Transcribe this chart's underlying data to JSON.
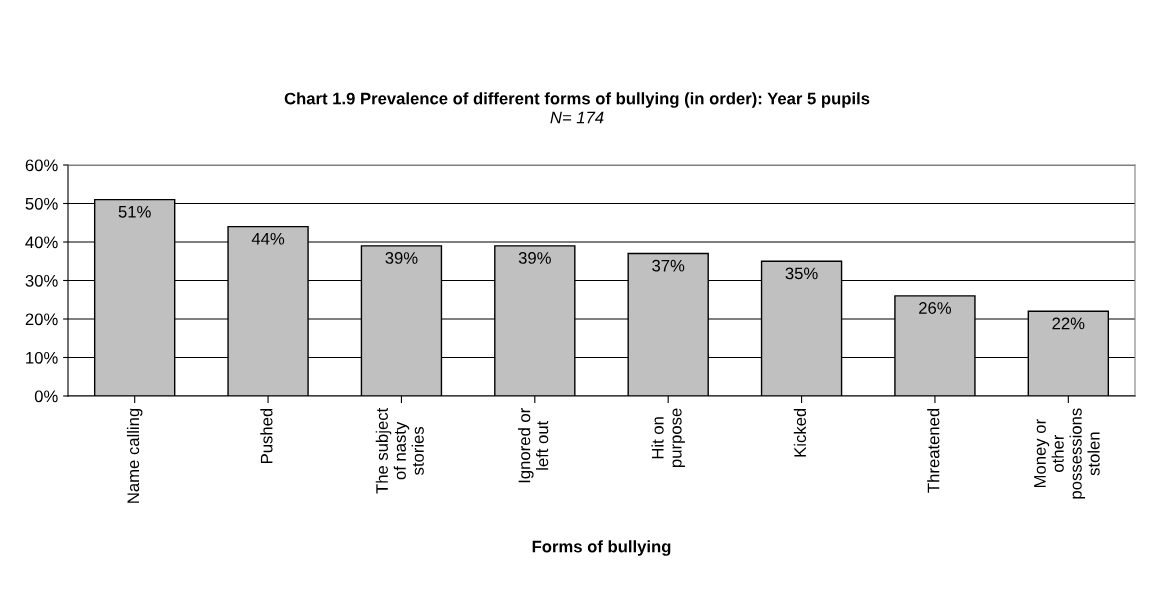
{
  "chart_data": {
    "type": "bar",
    "title": "Chart 1.9 Prevalence of different forms of bullying (in order): Year 5 pupils",
    "subtitle": "N= 174",
    "xlabel": "Forms of bullying",
    "categories": [
      "Name calling",
      "Pushed",
      "The subject\nof nasty\nstories",
      "Ignored or\nleft out",
      "Hit on\npurpose",
      "Kicked",
      "Threatened",
      "Money or\nother\npossessions\nstolen"
    ],
    "values": [
      51,
      44,
      39,
      39,
      37,
      35,
      26,
      22
    ],
    "value_labels": [
      "51%",
      "44%",
      "39%",
      "39%",
      "37%",
      "35%",
      "26%",
      "22%"
    ],
    "color": "#c0c0c0",
    "ylim": [
      0,
      60
    ],
    "yticks": [
      {
        "value": 0,
        "label": "0%"
      },
      {
        "value": 10,
        "label": "10%"
      },
      {
        "value": 20,
        "label": "20%"
      },
      {
        "value": 30,
        "label": "30%"
      },
      {
        "value": 40,
        "label": "40%"
      },
      {
        "value": 50,
        "label": "50%"
      },
      {
        "value": 60,
        "label": "60%"
      }
    ],
    "grid": "y",
    "legend": false
  }
}
